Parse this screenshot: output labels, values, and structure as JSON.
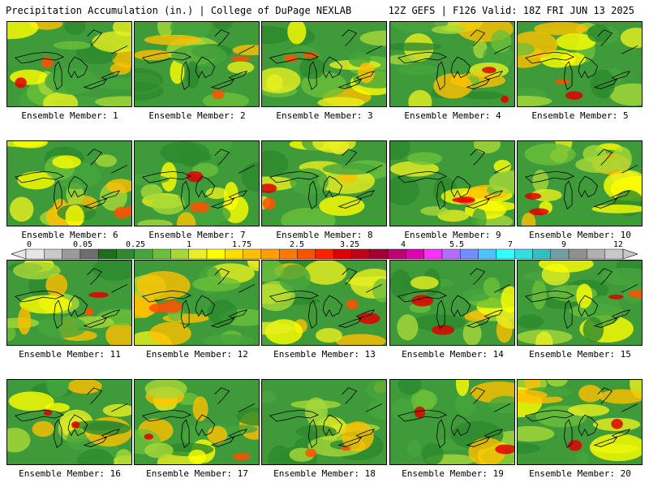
{
  "header": {
    "title_left": "Precipitation Accumulation (in.) | College of DuPage NEXLAB",
    "title_right": "12Z GEFS | F126 Valid: 18Z FRI JUN 13 2025"
  },
  "panels": [
    {
      "label": "Ensemble Member: 1"
    },
    {
      "label": "Ensemble Member: 2"
    },
    {
      "label": "Ensemble Member: 3"
    },
    {
      "label": "Ensemble Member: 4"
    },
    {
      "label": "Ensemble Member: 5"
    },
    {
      "label": "Ensemble Member: 6"
    },
    {
      "label": "Ensemble Member: 7"
    },
    {
      "label": "Ensemble Member: 8"
    },
    {
      "label": "Ensemble Member: 9"
    },
    {
      "label": "Ensemble Member: 10"
    },
    {
      "label": "Ensemble Member: 11"
    },
    {
      "label": "Ensemble Member: 12"
    },
    {
      "label": "Ensemble Member: 13"
    },
    {
      "label": "Ensemble Member: 14"
    },
    {
      "label": "Ensemble Member: 15"
    },
    {
      "label": "Ensemble Member: 16"
    },
    {
      "label": "Ensemble Member: 17"
    },
    {
      "label": "Ensemble Member: 18"
    },
    {
      "label": "Ensemble Member: 19"
    },
    {
      "label": "Ensemble Member: 20"
    }
  ],
  "colorbar": {
    "tick_labels": [
      "0",
      "0.05",
      "0.25",
      "1",
      "1.75",
      "2.5",
      "3.25",
      "4",
      "5.5",
      "7",
      "9",
      "12"
    ],
    "colors": [
      "#e6e6e6",
      "#c8c8c8",
      "#9a9a9a",
      "#6e6e6e",
      "#1e6e1e",
      "#2d8a2d",
      "#46a53c",
      "#6cbf3a",
      "#a8d838",
      "#e8f020",
      "#ffff00",
      "#ffe000",
      "#ffc000",
      "#ffa000",
      "#ff7a00",
      "#ff5000",
      "#ff2000",
      "#e00000",
      "#c00018",
      "#a00030",
      "#c00070",
      "#e000b0",
      "#ff30ff",
      "#b070ff",
      "#7090ff",
      "#50c0ff",
      "#30ffff",
      "#30e0e0",
      "#30c0c0",
      "#70a0a0",
      "#909090",
      "#b0b0b0",
      "#c8c8c8"
    ]
  }
}
